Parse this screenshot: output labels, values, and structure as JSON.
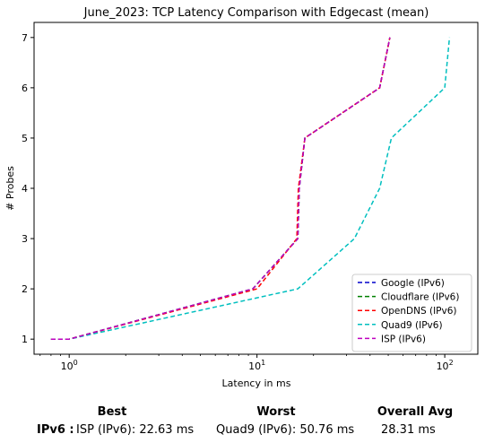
{
  "chart_data": {
    "type": "line",
    "title": "June_2023: TCP Latency Comparison with Edgecast (mean)",
    "xlabel": "Latency in ms",
    "ylabel": "# Probes",
    "xscale": "log",
    "xlim": [
      0.65,
      150
    ],
    "ylim": [
      0.7,
      7.3
    ],
    "xticks": [
      1,
      10,
      100
    ],
    "xtick_labels": [
      "10^0",
      "10^1",
      "10^2"
    ],
    "yticks": [
      1,
      2,
      3,
      4,
      5,
      6,
      7
    ],
    "grid": false,
    "legend_position": "lower-right",
    "series": [
      {
        "name": "Google (IPv6)",
        "color": "#0000cc",
        "dash": "dashed",
        "x": [
          0.8,
          1.0,
          9.5,
          16.5,
          16.8,
          18.0,
          45.0,
          51.0
        ],
        "y": [
          1,
          1,
          2,
          3,
          4,
          5,
          6,
          7
        ]
      },
      {
        "name": "Cloudflare (IPv6)",
        "color": "#008000",
        "dash": "dashed",
        "x": [
          0.8,
          1.0,
          9.5,
          16.5,
          16.8,
          18.0,
          45.0,
          51.0
        ],
        "y": [
          1,
          1,
          2,
          3,
          4,
          5,
          6,
          7
        ]
      },
      {
        "name": "OpenDNS (IPv6)",
        "color": "#ff0000",
        "dash": "dashed",
        "x": [
          0.8,
          1.0,
          10.0,
          16.3,
          16.6,
          18.0,
          45.0,
          51.0
        ],
        "y": [
          1,
          1,
          2,
          3,
          4,
          5,
          6,
          7
        ]
      },
      {
        "name": "Quad9 (IPv6)",
        "color": "#00bfbf",
        "dash": "dashed",
        "x": [
          0.8,
          1.0,
          16.5,
          33.0,
          45.0,
          52.0,
          100.0,
          106.0
        ],
        "y": [
          1,
          1,
          2,
          3,
          4,
          5,
          6,
          7
        ]
      },
      {
        "name": "ISP (IPv6)",
        "color": "#bf00bf",
        "dash": "dashed",
        "x": [
          0.8,
          1.0,
          9.5,
          16.5,
          16.8,
          18.0,
          45.0,
          51.0
        ],
        "y": [
          1,
          1,
          2,
          3,
          4,
          5,
          6,
          7
        ]
      }
    ]
  },
  "summary": {
    "best_header": "Best",
    "worst_header": "Worst",
    "avg_header": "Overall Avg",
    "row_label": "IPv6 :",
    "best_value": "ISP (IPv6): 22.63 ms",
    "worst_value": "Quad9 (IPv6): 50.76 ms",
    "avg_value": "28.31 ms"
  }
}
